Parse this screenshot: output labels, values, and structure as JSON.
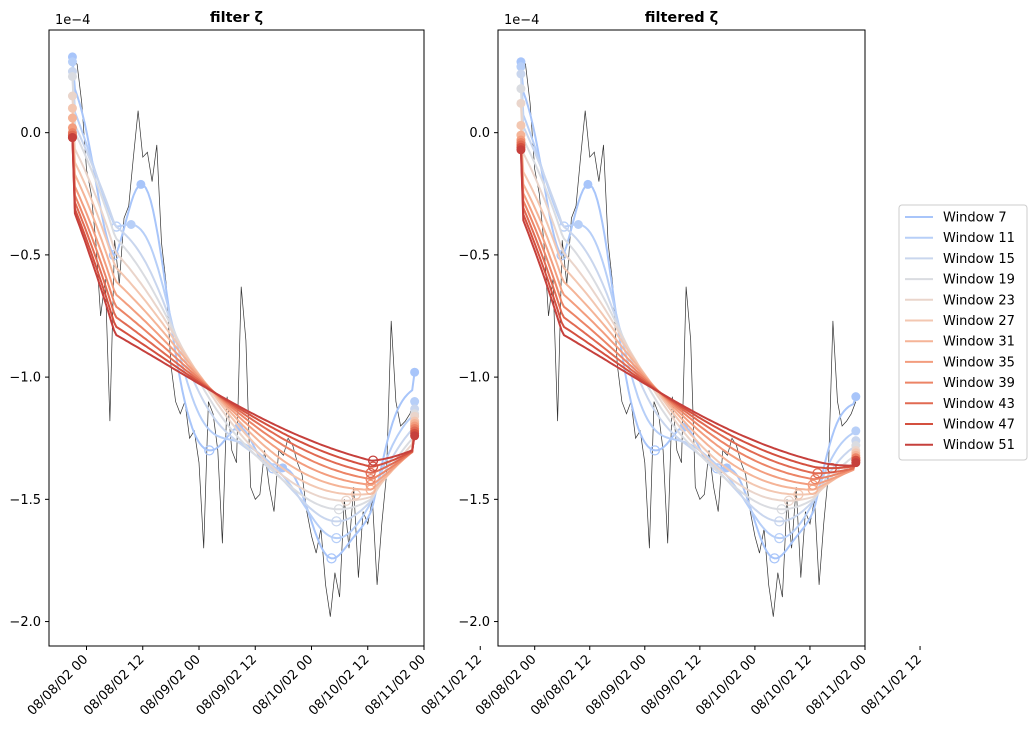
{
  "chart_data": [
    {
      "type": "line",
      "title": "filter ζ",
      "multiplier": "1e−4",
      "xlabel": "",
      "ylabel": "",
      "ylim": [
        -2.1,
        0.42
      ],
      "xlim_hours": [
        -8,
        72
      ],
      "x_tick_labels": [
        "08/08/02 00",
        "08/08/02 12",
        "08/09/02 00",
        "08/09/02 12",
        "08/10/02 00",
        "08/10/02 12",
        "08/11/02 00",
        "08/11/02 12"
      ],
      "y_tick_values": [
        -2.0,
        -1.5,
        -1.0,
        -0.5,
        0.0
      ],
      "y_tick_labels": [
        "−2.0",
        "−1.5",
        "−1.0",
        "−0.5",
        "0.0"
      ],
      "grid": false,
      "legend": "right, outside plot",
      "raw_series": {
        "name": "",
        "color": "#333333",
        "x_hours": [
          -3,
          -2,
          -1,
          0,
          1,
          2,
          3,
          4,
          5,
          6,
          7,
          8,
          9,
          10,
          11,
          12,
          13,
          14,
          15,
          16,
          17,
          18,
          19,
          20,
          21,
          22,
          23,
          24,
          25,
          26,
          27,
          28,
          29,
          30,
          31,
          32,
          33,
          34,
          35,
          36,
          37,
          38,
          39,
          40,
          41,
          42,
          43,
          44,
          45,
          46,
          47,
          48,
          49,
          50,
          51,
          52,
          53,
          54,
          55,
          56,
          57,
          58,
          59,
          60,
          61,
          62,
          63,
          64,
          65,
          66,
          67,
          68,
          69,
          70
        ],
        "y": [
          0.3,
          0.28,
          0.12,
          -0.15,
          -0.25,
          -0.45,
          -0.75,
          -0.6,
          -1.18,
          -0.44,
          -0.62,
          -0.35,
          -0.3,
          -0.1,
          0.09,
          -0.1,
          -0.08,
          -0.2,
          -0.05,
          -0.45,
          -0.62,
          -0.95,
          -1.1,
          -1.15,
          -1.1,
          -1.25,
          -1.22,
          -1.35,
          -1.7,
          -1.1,
          -1.15,
          -1.3,
          -1.68,
          -1.08,
          -1.3,
          -1.35,
          -0.63,
          -0.85,
          -1.45,
          -1.5,
          -1.48,
          -1.3,
          -1.45,
          -1.55,
          -1.3,
          -1.32,
          -1.25,
          -1.28,
          -1.35,
          -1.4,
          -1.55,
          -1.65,
          -1.72,
          -1.62,
          -1.85,
          -1.98,
          -1.8,
          -1.9,
          -1.5,
          -1.7,
          -1.45,
          -1.82,
          -1.55,
          -1.6,
          -1.5,
          -1.85,
          -1.6,
          -1.4,
          -0.77,
          -1.1,
          -1.2,
          -1.18,
          -1.15,
          -1.1
        ]
      },
      "series": [
        {
          "name": "Window 7",
          "color": "#a8c5fa",
          "start": 0.31,
          "end": -0.98
        },
        {
          "name": "Window 11",
          "color": "#b7cff8",
          "start": 0.29,
          "end": -1.1
        },
        {
          "name": "Window 15",
          "color": "#c9d6ee",
          "start": 0.25,
          "end": -1.13
        },
        {
          "name": "Window 19",
          "color": "#dadce1",
          "start": 0.23,
          "end": -1.15
        },
        {
          "name": "Window 23",
          "color": "#ead5cb",
          "start": 0.15,
          "end": -1.16
        },
        {
          "name": "Window 27",
          "color": "#f3c7b1",
          "start": 0.1,
          "end": -1.18
        },
        {
          "name": "Window 31",
          "color": "#f5b497",
          "start": 0.06,
          "end": -1.19
        },
        {
          "name": "Window 35",
          "color": "#f39d7e",
          "start": 0.02,
          "end": -1.2
        },
        {
          "name": "Window 39",
          "color": "#ec8466",
          "start": 0.0,
          "end": -1.21
        },
        {
          "name": "Window 43",
          "color": "#e16a52",
          "start": -0.01,
          "end": -1.22
        },
        {
          "name": "Window 47",
          "color": "#d4503f",
          "start": -0.02,
          "end": -1.23
        },
        {
          "name": "Window 51",
          "color": "#c6403c",
          "start": -0.02,
          "end": -1.24
        }
      ]
    },
    {
      "type": "line",
      "title": "filtered ζ",
      "multiplier": "1e−4",
      "xlabel": "",
      "ylabel": "",
      "ylim": [
        -2.1,
        0.42
      ],
      "xlim_hours": [
        -8,
        72
      ],
      "x_tick_labels": [
        "08/08/02 00",
        "08/08/02 12",
        "08/09/02 00",
        "08/09/02 12",
        "08/10/02 00",
        "08/10/02 12",
        "08/11/02 00",
        "08/11/02 12"
      ],
      "y_tick_values": [
        -2.0,
        -1.5,
        -1.0,
        -0.5,
        0.0
      ],
      "y_tick_labels": [
        "−2.0",
        "−1.5",
        "−1.0",
        "−0.5",
        "0.0"
      ],
      "grid": false,
      "raw_series": {
        "name": "",
        "color": "#333333",
        "x_hours": [
          -3,
          -2,
          -1,
          0,
          1,
          2,
          3,
          4,
          5,
          6,
          7,
          8,
          9,
          10,
          11,
          12,
          13,
          14,
          15,
          16,
          17,
          18,
          19,
          20,
          21,
          22,
          23,
          24,
          25,
          26,
          27,
          28,
          29,
          30,
          31,
          32,
          33,
          34,
          35,
          36,
          37,
          38,
          39,
          40,
          41,
          42,
          43,
          44,
          45,
          46,
          47,
          48,
          49,
          50,
          51,
          52,
          53,
          54,
          55,
          56,
          57,
          58,
          59,
          60,
          61,
          62,
          63,
          64,
          65,
          66,
          67,
          68,
          69,
          70
        ],
        "y": [
          0.3,
          0.28,
          0.12,
          -0.15,
          -0.25,
          -0.45,
          -0.75,
          -0.6,
          -1.18,
          -0.44,
          -0.62,
          -0.35,
          -0.3,
          -0.1,
          0.09,
          -0.1,
          -0.08,
          -0.2,
          -0.05,
          -0.45,
          -0.62,
          -0.95,
          -1.1,
          -1.15,
          -1.1,
          -1.25,
          -1.22,
          -1.35,
          -1.7,
          -1.1,
          -1.15,
          -1.3,
          -1.68,
          -1.08,
          -1.3,
          -1.35,
          -0.63,
          -0.85,
          -1.45,
          -1.5,
          -1.48,
          -1.3,
          -1.45,
          -1.55,
          -1.3,
          -1.32,
          -1.25,
          -1.28,
          -1.35,
          -1.4,
          -1.55,
          -1.65,
          -1.72,
          -1.62,
          -1.85,
          -1.98,
          -1.8,
          -1.9,
          -1.5,
          -1.7,
          -1.45,
          -1.82,
          -1.55,
          -1.6,
          -1.5,
          -1.85,
          -1.6,
          -1.4,
          -0.77,
          -1.1,
          -1.2,
          -1.18,
          -1.15,
          -1.1
        ]
      },
      "series": [
        {
          "name": "Window 7",
          "color": "#a8c5fa",
          "start": 0.29,
          "end": -1.08
        },
        {
          "name": "Window 11",
          "color": "#b7cff8",
          "start": 0.27,
          "end": -1.22
        },
        {
          "name": "Window 15",
          "color": "#c9d6ee",
          "start": 0.24,
          "end": -1.26
        },
        {
          "name": "Window 19",
          "color": "#dadce1",
          "start": 0.18,
          "end": -1.28
        },
        {
          "name": "Window 23",
          "color": "#ead5cb",
          "start": 0.12,
          "end": -1.3
        },
        {
          "name": "Window 27",
          "color": "#f3c7b1",
          "start": 0.03,
          "end": -1.31
        },
        {
          "name": "Window 31",
          "color": "#f5b497",
          "start": -0.01,
          "end": -1.32
        },
        {
          "name": "Window 35",
          "color": "#f39d7e",
          "start": -0.03,
          "end": -1.33
        },
        {
          "name": "Window 39",
          "color": "#ec8466",
          "start": -0.04,
          "end": -1.33
        },
        {
          "name": "Window 43",
          "color": "#e16a52",
          "start": -0.05,
          "end": -1.34
        },
        {
          "name": "Window 47",
          "color": "#d4503f",
          "start": -0.06,
          "end": -1.34
        },
        {
          "name": "Window 51",
          "color": "#c6403c",
          "start": -0.07,
          "end": -1.35
        }
      ]
    }
  ]
}
